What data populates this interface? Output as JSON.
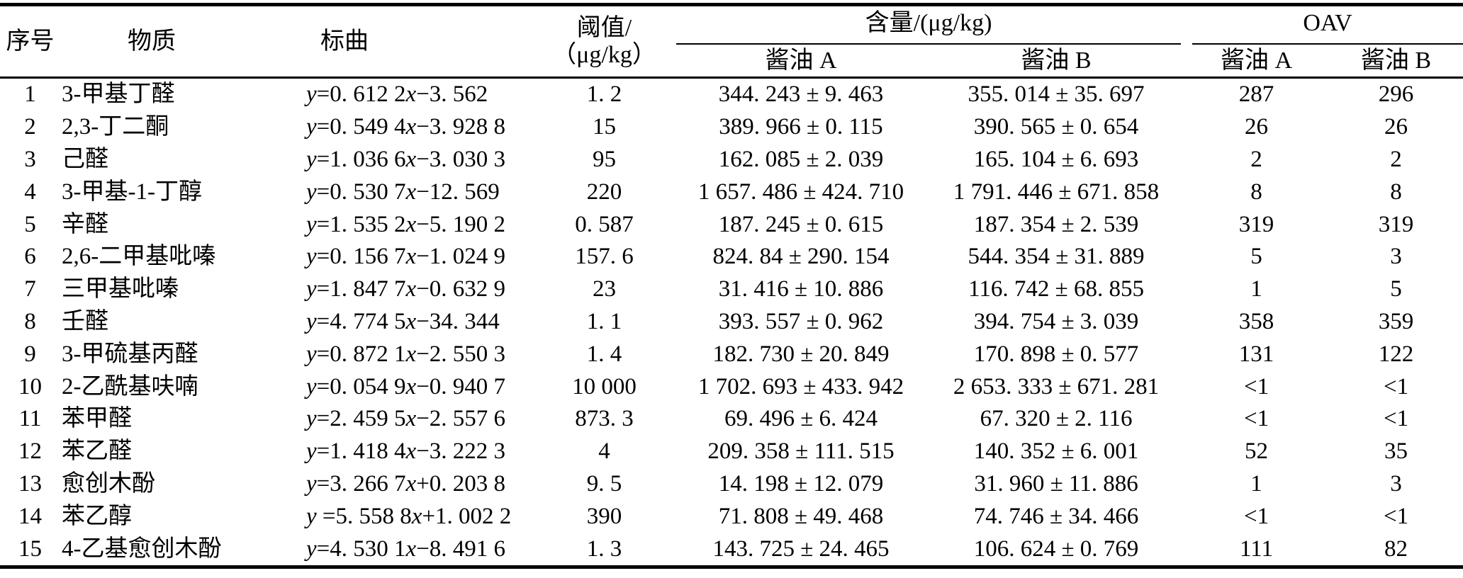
{
  "colors": {
    "text": "#000000",
    "background": "#ffffff",
    "rule": "#000000"
  },
  "table": {
    "headers": {
      "no": "序号",
      "substance": "物质",
      "curve": "标曲",
      "threshold_line1": "阈值/",
      "threshold_line2": "（μg/kg）",
      "content_group": "含量/(μg/kg)",
      "oav_group": "OAV",
      "soy_a": "酱油 A",
      "soy_b": "酱油 B"
    },
    "rows": [
      {
        "no": "1",
        "substance": "3-甲基丁醛",
        "curve": "y=0. 612 2x−3. 562",
        "threshold": "1. 2",
        "content_a": "344. 243 ± 9. 463",
        "content_b": "355. 014 ± 35. 697",
        "oav_a": "287",
        "oav_b": "296"
      },
      {
        "no": "2",
        "substance": "2,3-丁二酮",
        "curve": "y=0. 549 4x−3. 928 8",
        "threshold": "15",
        "content_a": "389. 966 ± 0. 115",
        "content_b": "390. 565 ± 0. 654",
        "oav_a": "26",
        "oav_b": "26"
      },
      {
        "no": "3",
        "substance": "己醛",
        "curve": "y=1. 036 6x−3. 030 3",
        "threshold": "95",
        "content_a": "162. 085 ± 2. 039",
        "content_b": "165. 104 ± 6. 693",
        "oav_a": "2",
        "oav_b": "2"
      },
      {
        "no": "4",
        "substance": "3-甲基-1-丁醇",
        "curve": "y=0. 530 7x−12. 569",
        "threshold": "220",
        "content_a": "1 657. 486 ± 424. 710",
        "content_b": "1 791. 446 ± 671. 858",
        "oav_a": "8",
        "oav_b": "8"
      },
      {
        "no": "5",
        "substance": "辛醛",
        "curve": "y=1. 535 2x−5. 190 2",
        "threshold": "0. 587",
        "content_a": "187. 245 ± 0. 615",
        "content_b": "187. 354 ± 2. 539",
        "oav_a": "319",
        "oav_b": "319"
      },
      {
        "no": "6",
        "substance": "2,6-二甲基吡嗪",
        "curve": "y=0. 156 7x−1. 024 9",
        "threshold": "157. 6",
        "content_a": "824. 84 ± 290. 154",
        "content_b": "544. 354 ± 31. 889",
        "oav_a": "5",
        "oav_b": "3"
      },
      {
        "no": "7",
        "substance": "三甲基吡嗪",
        "curve": "y=1. 847 7x−0. 632 9",
        "threshold": "23",
        "content_a": "31. 416 ± 10. 886",
        "content_b": "116. 742 ± 68. 855",
        "oav_a": "1",
        "oav_b": "5"
      },
      {
        "no": "8",
        "substance": "壬醛",
        "curve": "y=4. 774 5x−34. 344",
        "threshold": "1. 1",
        "content_a": "393. 557 ± 0. 962",
        "content_b": "394. 754 ± 3. 039",
        "oav_a": "358",
        "oav_b": "359"
      },
      {
        "no": "9",
        "substance": "3-甲硫基丙醛",
        "curve": "y=0. 872 1x−2. 550 3",
        "threshold": "1. 4",
        "content_a": "182. 730 ± 20. 849",
        "content_b": "170. 898 ± 0. 577",
        "oav_a": "131",
        "oav_b": "122"
      },
      {
        "no": "10",
        "substance": "2-乙酰基呋喃",
        "curve": "y=0. 054 9x−0. 940 7",
        "threshold": "10 000",
        "content_a": "1 702. 693 ± 433. 942",
        "content_b": "2 653. 333 ± 671. 281",
        "oav_a": "<1",
        "oav_b": "<1"
      },
      {
        "no": "11",
        "substance": "苯甲醛",
        "curve": "y=2. 459 5x−2. 557 6",
        "threshold": "873. 3",
        "content_a": "69. 496 ± 6. 424",
        "content_b": "67. 320 ± 2. 116",
        "oav_a": "<1",
        "oav_b": "<1"
      },
      {
        "no": "12",
        "substance": "苯乙醛",
        "curve": "y=1. 418 4x−3. 222 3",
        "threshold": "4",
        "content_a": "209. 358 ± 111. 515",
        "content_b": "140. 352 ± 6. 001",
        "oav_a": "52",
        "oav_b": "35"
      },
      {
        "no": "13",
        "substance": "愈创木酚",
        "curve": "y=3. 266 7x+0. 203 8",
        "threshold": "9. 5",
        "content_a": "14. 198 ± 12. 079",
        "content_b": "31. 960 ± 11. 886",
        "oav_a": "1",
        "oav_b": "3"
      },
      {
        "no": "14",
        "substance": "苯乙醇",
        "curve": "y =5. 558 8x+1. 002 2",
        "threshold": "390",
        "content_a": "71. 808 ± 49. 468",
        "content_b": "74. 746 ± 34. 466",
        "oav_a": "<1",
        "oav_b": "<1"
      },
      {
        "no": "15",
        "substance": "4-乙基愈创木酚",
        "curve": "y=4. 530 1x−8. 491 6",
        "threshold": "1. 3",
        "content_a": "143. 725 ± 24. 465",
        "content_b": "106. 624 ± 0. 769",
        "oav_a": "111",
        "oav_b": "82"
      }
    ]
  }
}
